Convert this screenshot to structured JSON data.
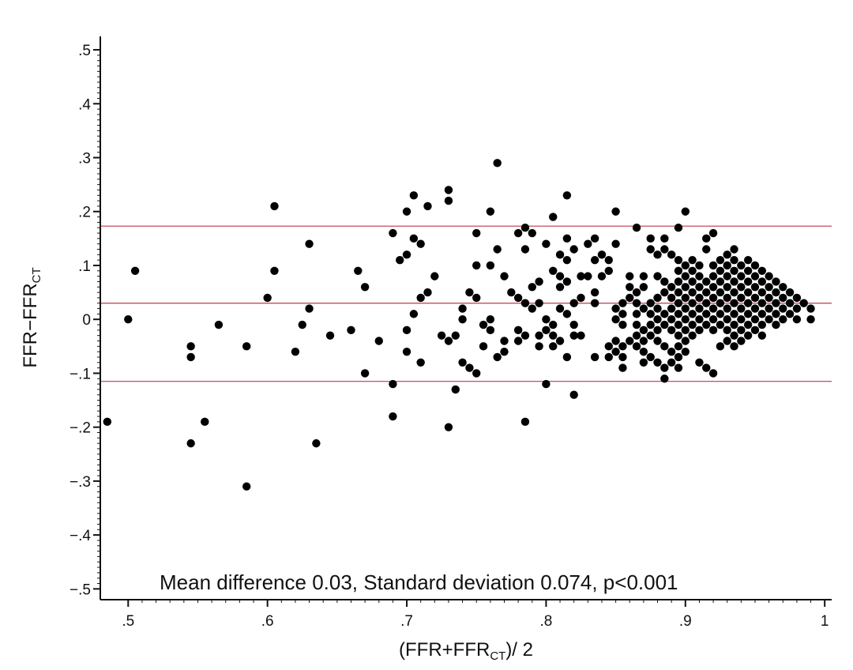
{
  "chart_data": {
    "type": "scatter",
    "title": "",
    "xlabel": {
      "main": "(FFR+FFR",
      "sub": "CT",
      "tail": ")/ 2"
    },
    "ylabel": {
      "main": "FFR−FFR",
      "sub": "CT"
    },
    "xlim": [
      0.48,
      1.005
    ],
    "ylim": [
      -0.52,
      0.525
    ],
    "xticks": [
      0.5,
      0.6,
      0.7,
      0.8,
      0.9,
      1.0
    ],
    "xtick_labels": [
      ".5",
      ".6",
      ".7",
      ".8",
      ".9",
      "1"
    ],
    "yticks": [
      0.5,
      0.4,
      0.3,
      0.2,
      0.1,
      0.0,
      -0.1,
      -0.2,
      -0.3,
      -0.4,
      -0.5
    ],
    "ytick_labels": [
      ".5",
      ".4",
      ".3",
      ".2",
      ".1",
      "0",
      "−.1",
      "−.2",
      "−.3",
      "−.4",
      "−.5"
    ],
    "minor_step": 0.01,
    "grid": false,
    "reference_lines": [
      {
        "value": 0.173,
        "color": "#c0394b"
      },
      {
        "value": 0.03,
        "color": "#c0394b"
      },
      {
        "value": -0.115,
        "color": "#c0394b"
      }
    ],
    "annotation": "Mean difference 0.03, Standard deviation 0.074, p<0.001",
    "marker_color": "#000000",
    "points": [
      [
        0.485,
        -0.19
      ],
      [
        0.5,
        0.0
      ],
      [
        0.505,
        0.09
      ],
      [
        0.545,
        -0.05
      ],
      [
        0.545,
        -0.07
      ],
      [
        0.545,
        -0.23
      ],
      [
        0.555,
        -0.19
      ],
      [
        0.565,
        -0.01
      ],
      [
        0.585,
        -0.05
      ],
      [
        0.585,
        -0.31
      ],
      [
        0.6,
        0.04
      ],
      [
        0.605,
        0.21
      ],
      [
        0.605,
        0.09
      ],
      [
        0.62,
        -0.06
      ],
      [
        0.625,
        -0.01
      ],
      [
        0.63,
        0.14
      ],
      [
        0.63,
        0.02
      ],
      [
        0.635,
        -0.23
      ],
      [
        0.645,
        -0.03
      ],
      [
        0.66,
        -0.02
      ],
      [
        0.665,
        0.09
      ],
      [
        0.67,
        0.06
      ],
      [
        0.67,
        -0.1
      ],
      [
        0.68,
        -0.04
      ],
      [
        0.69,
        0.16
      ],
      [
        0.69,
        -0.12
      ],
      [
        0.69,
        -0.18
      ],
      [
        0.695,
        0.11
      ],
      [
        0.7,
        0.2
      ],
      [
        0.7,
        0.12
      ],
      [
        0.7,
        -0.02
      ],
      [
        0.7,
        -0.06
      ],
      [
        0.705,
        0.23
      ],
      [
        0.705,
        0.15
      ],
      [
        0.705,
        0.01
      ],
      [
        0.71,
        0.14
      ],
      [
        0.71,
        0.04
      ],
      [
        0.71,
        -0.08
      ],
      [
        0.715,
        0.21
      ],
      [
        0.715,
        0.05
      ],
      [
        0.72,
        0.08
      ],
      [
        0.725,
        -0.03
      ],
      [
        0.73,
        0.24
      ],
      [
        0.73,
        0.22
      ],
      [
        0.73,
        -0.04
      ],
      [
        0.73,
        -0.2
      ],
      [
        0.735,
        -0.03
      ],
      [
        0.735,
        -0.13
      ],
      [
        0.74,
        0.02
      ],
      [
        0.74,
        0.0
      ],
      [
        0.74,
        -0.08
      ],
      [
        0.745,
        0.05
      ],
      [
        0.745,
        -0.09
      ],
      [
        0.75,
        0.16
      ],
      [
        0.75,
        0.1
      ],
      [
        0.75,
        0.04
      ],
      [
        0.75,
        -0.1
      ],
      [
        0.755,
        -0.01
      ],
      [
        0.755,
        -0.05
      ],
      [
        0.76,
        0.2
      ],
      [
        0.76,
        0.1
      ],
      [
        0.76,
        0.0
      ],
      [
        0.76,
        -0.02
      ],
      [
        0.765,
        0.29
      ],
      [
        0.765,
        0.13
      ],
      [
        0.765,
        -0.07
      ],
      [
        0.77,
        0.08
      ],
      [
        0.77,
        -0.04
      ],
      [
        0.77,
        -0.06
      ],
      [
        0.775,
        0.05
      ],
      [
        0.78,
        0.16
      ],
      [
        0.78,
        0.04
      ],
      [
        0.78,
        -0.02
      ],
      [
        0.78,
        -0.04
      ],
      [
        0.785,
        0.17
      ],
      [
        0.785,
        0.13
      ],
      [
        0.785,
        0.03
      ],
      [
        0.785,
        -0.03
      ],
      [
        0.785,
        -0.19
      ],
      [
        0.79,
        0.16
      ],
      [
        0.79,
        0.06
      ],
      [
        0.79,
        0.02
      ],
      [
        0.795,
        0.07
      ],
      [
        0.795,
        0.03
      ],
      [
        0.795,
        -0.03
      ],
      [
        0.795,
        -0.05
      ],
      [
        0.8,
        0.14
      ],
      [
        0.8,
        0.0
      ],
      [
        0.8,
        -0.02
      ],
      [
        0.8,
        -0.12
      ],
      [
        0.805,
        0.19
      ],
      [
        0.805,
        0.09
      ],
      [
        0.805,
        -0.01
      ],
      [
        0.805,
        -0.03
      ],
      [
        0.805,
        -0.05
      ],
      [
        0.81,
        0.12
      ],
      [
        0.81,
        0.08
      ],
      [
        0.81,
        0.06
      ],
      [
        0.81,
        0.02
      ],
      [
        0.81,
        -0.04
      ],
      [
        0.815,
        0.23
      ],
      [
        0.815,
        0.15
      ],
      [
        0.815,
        0.11
      ],
      [
        0.815,
        0.07
      ],
      [
        0.815,
        0.01
      ],
      [
        0.815,
        -0.07
      ],
      [
        0.82,
        0.13
      ],
      [
        0.82,
        0.03
      ],
      [
        0.82,
        -0.01
      ],
      [
        0.82,
        -0.03
      ],
      [
        0.82,
        -0.14
      ],
      [
        0.825,
        0.08
      ],
      [
        0.825,
        0.04
      ],
      [
        0.825,
        -0.03
      ],
      [
        0.83,
        0.14
      ],
      [
        0.83,
        0.08
      ],
      [
        0.835,
        0.15
      ],
      [
        0.835,
        0.11
      ],
      [
        0.835,
        0.05
      ],
      [
        0.835,
        0.03
      ],
      [
        0.835,
        -0.07
      ],
      [
        0.84,
        0.12
      ],
      [
        0.84,
        0.08
      ],
      [
        0.845,
        0.11
      ],
      [
        0.845,
        0.09
      ],
      [
        0.845,
        -0.05
      ],
      [
        0.845,
        -0.07
      ],
      [
        0.85,
        0.2
      ],
      [
        0.85,
        0.14
      ],
      [
        0.85,
        0.02
      ],
      [
        0.85,
        0.0
      ],
      [
        0.85,
        -0.04
      ],
      [
        0.85,
        -0.06
      ],
      [
        0.855,
        0.03
      ],
      [
        0.855,
        0.01
      ],
      [
        0.855,
        -0.01
      ],
      [
        0.855,
        -0.05
      ],
      [
        0.855,
        -0.07
      ],
      [
        0.855,
        -0.09
      ],
      [
        0.86,
        0.08
      ],
      [
        0.86,
        0.06
      ],
      [
        0.86,
        0.04
      ],
      [
        0.86,
        -0.04
      ],
      [
        0.865,
        0.17
      ],
      [
        0.865,
        0.05
      ],
      [
        0.865,
        0.03
      ],
      [
        0.865,
        0.01
      ],
      [
        0.865,
        -0.01
      ],
      [
        0.865,
        -0.03
      ],
      [
        0.865,
        -0.05
      ],
      [
        0.87,
        0.08
      ],
      [
        0.87,
        0.06
      ],
      [
        0.87,
        0.02
      ],
      [
        0.87,
        -0.02
      ],
      [
        0.87,
        -0.04
      ],
      [
        0.87,
        -0.06
      ],
      [
        0.87,
        -0.08
      ],
      [
        0.875,
        0.15
      ],
      [
        0.875,
        0.13
      ],
      [
        0.875,
        0.03
      ],
      [
        0.875,
        0.01
      ],
      [
        0.875,
        -0.01
      ],
      [
        0.875,
        -0.03
      ],
      [
        0.875,
        -0.07
      ],
      [
        0.88,
        0.12
      ],
      [
        0.88,
        0.08
      ],
      [
        0.88,
        0.04
      ],
      [
        0.88,
        0.02
      ],
      [
        0.88,
        0.0
      ],
      [
        0.88,
        -0.02
      ],
      [
        0.88,
        -0.04
      ],
      [
        0.88,
        -0.08
      ],
      [
        0.885,
        0.15
      ],
      [
        0.885,
        0.13
      ],
      [
        0.885,
        0.07
      ],
      [
        0.885,
        0.05
      ],
      [
        0.885,
        0.01
      ],
      [
        0.885,
        -0.01
      ],
      [
        0.885,
        -0.05
      ],
      [
        0.885,
        -0.09
      ],
      [
        0.885,
        -0.11
      ],
      [
        0.89,
        0.12
      ],
      [
        0.89,
        0.06
      ],
      [
        0.89,
        0.04
      ],
      [
        0.89,
        0.02
      ],
      [
        0.89,
        0.0
      ],
      [
        0.89,
        -0.02
      ],
      [
        0.89,
        -0.06
      ],
      [
        0.89,
        -0.08
      ],
      [
        0.895,
        0.17
      ],
      [
        0.895,
        0.11
      ],
      [
        0.895,
        0.09
      ],
      [
        0.895,
        0.07
      ],
      [
        0.895,
        0.05
      ],
      [
        0.895,
        0.03
      ],
      [
        0.895,
        0.01
      ],
      [
        0.895,
        -0.01
      ],
      [
        0.895,
        -0.03
      ],
      [
        0.895,
        -0.05
      ],
      [
        0.895,
        -0.07
      ],
      [
        0.895,
        -0.09
      ],
      [
        0.9,
        0.2
      ],
      [
        0.9,
        0.1
      ],
      [
        0.9,
        0.08
      ],
      [
        0.9,
        0.06
      ],
      [
        0.9,
        0.04
      ],
      [
        0.9,
        0.02
      ],
      [
        0.9,
        0.0
      ],
      [
        0.9,
        -0.02
      ],
      [
        0.9,
        -0.04
      ],
      [
        0.9,
        -0.06
      ],
      [
        0.905,
        0.11
      ],
      [
        0.905,
        0.09
      ],
      [
        0.905,
        0.07
      ],
      [
        0.905,
        0.05
      ],
      [
        0.905,
        0.03
      ],
      [
        0.905,
        0.01
      ],
      [
        0.905,
        -0.01
      ],
      [
        0.905,
        -0.03
      ],
      [
        0.91,
        0.1
      ],
      [
        0.91,
        0.08
      ],
      [
        0.91,
        0.06
      ],
      [
        0.91,
        0.04
      ],
      [
        0.91,
        0.02
      ],
      [
        0.91,
        0.0
      ],
      [
        0.91,
        -0.02
      ],
      [
        0.91,
        -0.08
      ],
      [
        0.915,
        0.15
      ],
      [
        0.915,
        0.13
      ],
      [
        0.915,
        0.07
      ],
      [
        0.915,
        0.05
      ],
      [
        0.915,
        0.03
      ],
      [
        0.915,
        0.01
      ],
      [
        0.915,
        -0.01
      ],
      [
        0.915,
        -0.09
      ],
      [
        0.92,
        0.16
      ],
      [
        0.92,
        0.1
      ],
      [
        0.92,
        0.08
      ],
      [
        0.92,
        0.06
      ],
      [
        0.92,
        0.04
      ],
      [
        0.92,
        0.02
      ],
      [
        0.92,
        0.0
      ],
      [
        0.92,
        -0.02
      ],
      [
        0.92,
        -0.1
      ],
      [
        0.925,
        0.11
      ],
      [
        0.925,
        0.09
      ],
      [
        0.925,
        0.07
      ],
      [
        0.925,
        0.05
      ],
      [
        0.925,
        0.03
      ],
      [
        0.925,
        0.01
      ],
      [
        0.925,
        -0.01
      ],
      [
        0.925,
        -0.05
      ],
      [
        0.93,
        0.12
      ],
      [
        0.93,
        0.1
      ],
      [
        0.93,
        0.08
      ],
      [
        0.93,
        0.06
      ],
      [
        0.93,
        0.04
      ],
      [
        0.93,
        0.02
      ],
      [
        0.93,
        0.0
      ],
      [
        0.93,
        -0.02
      ],
      [
        0.93,
        -0.04
      ],
      [
        0.935,
        0.13
      ],
      [
        0.935,
        0.11
      ],
      [
        0.935,
        0.09
      ],
      [
        0.935,
        0.07
      ],
      [
        0.935,
        0.05
      ],
      [
        0.935,
        0.03
      ],
      [
        0.935,
        0.01
      ],
      [
        0.935,
        -0.01
      ],
      [
        0.935,
        -0.03
      ],
      [
        0.935,
        -0.05
      ],
      [
        0.94,
        0.1
      ],
      [
        0.94,
        0.08
      ],
      [
        0.94,
        0.06
      ],
      [
        0.94,
        0.04
      ],
      [
        0.94,
        0.02
      ],
      [
        0.94,
        0.0
      ],
      [
        0.94,
        -0.02
      ],
      [
        0.94,
        -0.04
      ],
      [
        0.945,
        0.11
      ],
      [
        0.945,
        0.09
      ],
      [
        0.945,
        0.07
      ],
      [
        0.945,
        0.05
      ],
      [
        0.945,
        0.03
      ],
      [
        0.945,
        0.01
      ],
      [
        0.945,
        -0.01
      ],
      [
        0.945,
        -0.03
      ],
      [
        0.95,
        0.1
      ],
      [
        0.95,
        0.08
      ],
      [
        0.95,
        0.06
      ],
      [
        0.95,
        0.04
      ],
      [
        0.95,
        0.02
      ],
      [
        0.95,
        0.0
      ],
      [
        0.95,
        -0.02
      ],
      [
        0.955,
        0.09
      ],
      [
        0.955,
        0.07
      ],
      [
        0.955,
        0.05
      ],
      [
        0.955,
        0.03
      ],
      [
        0.955,
        0.01
      ],
      [
        0.955,
        -0.01
      ],
      [
        0.955,
        -0.03
      ],
      [
        0.96,
        0.08
      ],
      [
        0.96,
        0.06
      ],
      [
        0.96,
        0.04
      ],
      [
        0.96,
        0.02
      ],
      [
        0.96,
        0.0
      ],
      [
        0.965,
        0.07
      ],
      [
        0.965,
        0.05
      ],
      [
        0.965,
        0.03
      ],
      [
        0.965,
        0.01
      ],
      [
        0.965,
        -0.01
      ],
      [
        0.97,
        0.06
      ],
      [
        0.97,
        0.04
      ],
      [
        0.97,
        0.02
      ],
      [
        0.97,
        0.0
      ],
      [
        0.975,
        0.05
      ],
      [
        0.975,
        0.03
      ],
      [
        0.975,
        0.01
      ],
      [
        0.98,
        0.04
      ],
      [
        0.98,
        0.02
      ],
      [
        0.98,
        0.0
      ],
      [
        0.985,
        0.03
      ],
      [
        0.99,
        0.02
      ],
      [
        0.99,
        0.0
      ]
    ]
  }
}
